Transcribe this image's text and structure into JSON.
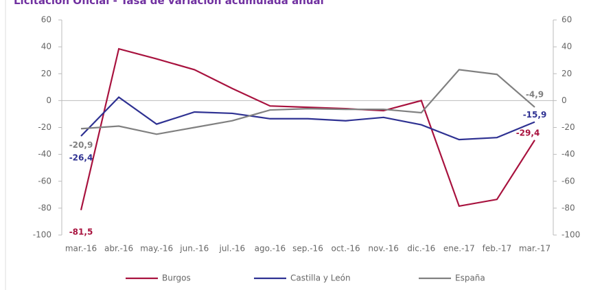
{
  "chart_data": {
    "type": "line",
    "title": "Licitación Oficial - Tasa de variación acumulada anual",
    "categories": [
      "mar.-16",
      "abr.-16",
      "may.-16",
      "jun.-16",
      "jul.-16",
      "ago.-16",
      "sep.-16",
      "oct.-16",
      "nov.-16",
      "dic.-16",
      "ene.-17",
      "feb.-17",
      "mar.-17"
    ],
    "series": [
      {
        "name": "Burgos",
        "color": "#a8123e",
        "values": [
          -81.5,
          38.5,
          31,
          23,
          9,
          -4,
          -5,
          -6,
          -7.5,
          0,
          -78.5,
          -73.5,
          -29.4
        ],
        "value_labels": [
          "-81,5",
          null,
          null,
          null,
          null,
          null,
          null,
          null,
          null,
          null,
          null,
          null,
          "-29,4"
        ]
      },
      {
        "name": "Castilla y León",
        "color": "#2e3192",
        "values": [
          -26.4,
          2.5,
          -17.5,
          -8.5,
          -9.5,
          -13.5,
          -13.5,
          -15,
          -12.5,
          -18,
          -29,
          -27.5,
          -15.9
        ],
        "value_labels": [
          "-26,4",
          null,
          null,
          null,
          null,
          null,
          null,
          null,
          null,
          null,
          null,
          null,
          "-15,9"
        ]
      },
      {
        "name": "España",
        "color": "#808080",
        "values": [
          -20.9,
          -19,
          -25,
          -20,
          -15,
          -7,
          -6,
          -6.5,
          -6.5,
          -9,
          23,
          19.5,
          -4.9
        ],
        "value_labels": [
          "-20,9",
          null,
          null,
          null,
          null,
          null,
          null,
          null,
          null,
          null,
          null,
          null,
          "-4,9"
        ]
      }
    ],
    "ylim": [
      -100,
      60
    ],
    "yticks": [
      -100,
      -80,
      -60,
      -40,
      -20,
      0,
      20,
      40,
      60
    ],
    "y2lim": [
      -100,
      60
    ],
    "y2ticks": [
      -100,
      -80,
      -60,
      -40,
      -20,
      0,
      20,
      40,
      60
    ],
    "grid": false,
    "legend": "bottom"
  }
}
